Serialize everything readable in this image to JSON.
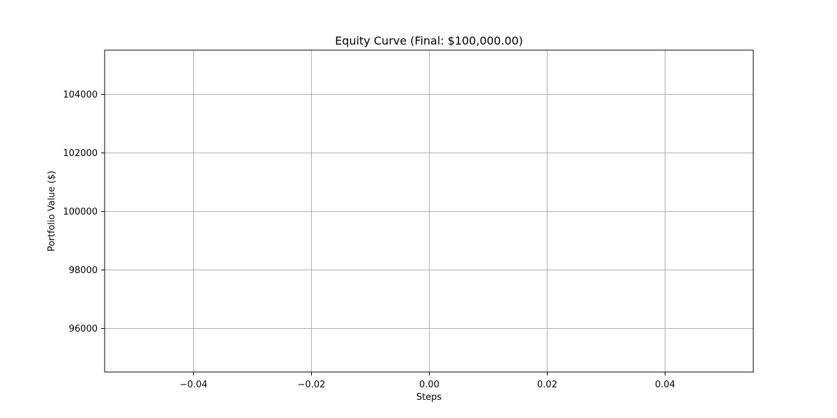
{
  "chart_data": {
    "type": "line",
    "title": "Equity Curve (Final: $100,000.00)",
    "xlabel": "Steps",
    "ylabel": "Portfolio Value ($)",
    "xlim": [
      -0.055,
      0.055
    ],
    "ylim": [
      94500,
      105500
    ],
    "xticks": [
      -0.04,
      -0.02,
      0.0,
      0.02,
      0.04
    ],
    "xtick_labels": [
      "−0.04",
      "−0.02",
      "0.00",
      "0.02",
      "0.04"
    ],
    "yticks": [
      96000,
      98000,
      100000,
      102000,
      104000
    ],
    "ytick_labels": [
      "96000",
      "98000",
      "100000",
      "102000",
      "104000"
    ],
    "grid": true,
    "series": [
      {
        "x": [
          0
        ],
        "y": [
          100000
        ],
        "color": "#1f77b4"
      }
    ]
  }
}
